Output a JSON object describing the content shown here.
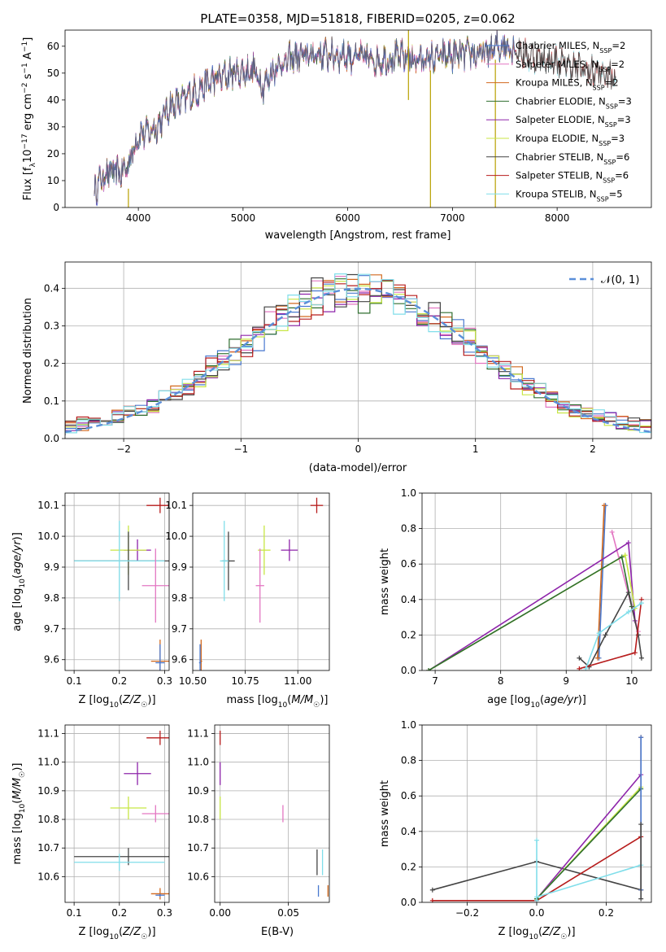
{
  "chart_data": [
    {
      "id": "spectrum",
      "type": "line",
      "title": "PLATE=0358, MJD=51818, FIBERID=0205, z=0.062",
      "xlabel": "wavelength [Angstrom, rest frame]",
      "ylabel": "Flux [f_λ10^-17 erg cm^-2 s^-1 A^-1]",
      "xlim": [
        3300,
        8900
      ],
      "ylim": [
        0,
        66
      ],
      "xticks": [
        4000,
        5000,
        6000,
        7000,
        8000
      ],
      "yticks": [
        0,
        10,
        20,
        30,
        40,
        50,
        60
      ],
      "grid": false,
      "legend_position": "upper-right",
      "series": [
        {
          "name": "Chabrier MILES, N_SSP=2",
          "color": "#4878cf"
        },
        {
          "name": "Salpeter MILES, N_SSP=2",
          "color": "#e377c2"
        },
        {
          "name": "Kroupa MILES, N_SSP=2",
          "color": "#d2691e"
        },
        {
          "name": "Chabrier ELODIE, N_SSP=3",
          "color": "#2f6e2f"
        },
        {
          "name": "Salpeter ELODIE, N_SSP=3",
          "color": "#8e24aa"
        },
        {
          "name": "Kroupa ELODIE, N_SSP=3",
          "color": "#c8e645"
        },
        {
          "name": "Chabrier STELIB, N_SSP=6",
          "color": "#444444"
        },
        {
          "name": "Salpeter STELIB, N_SSP=6",
          "color": "#b71c1c"
        },
        {
          "name": "Kroupa STELIB, N_SSP=5",
          "color": "#80deea"
        }
      ],
      "continuum": {
        "x": [
          3580,
          3700,
          3850,
          3900,
          4000,
          4100,
          4200,
          4300,
          4400,
          4500,
          4700,
          4900,
          5100,
          5200,
          5300,
          5500,
          5700,
          5900,
          6100,
          6300,
          6500,
          6700,
          6900,
          7100,
          7300,
          7500,
          7700,
          7900,
          8100,
          8300,
          8500
        ],
        "y": [
          7,
          13,
          13,
          16,
          27,
          28,
          31,
          38,
          39,
          42,
          47,
          50,
          51,
          45,
          52,
          56,
          57,
          57,
          56,
          55,
          56,
          55,
          56,
          57,
          57,
          61,
          57,
          55,
          53,
          51,
          49
        ]
      },
      "spikes": [
        {
          "x": 3905,
          "y": [
            0,
            7
          ]
        },
        {
          "x": 6580,
          "y": [
            40,
            66
          ]
        },
        {
          "x": 6790,
          "y": [
            0,
            51
          ]
        },
        {
          "x": 7410,
          "y": [
            0,
            55
          ]
        }
      ]
    },
    {
      "id": "residuals",
      "type": "step",
      "xlabel": "(data-model)/error",
      "ylabel": "Normed distribution",
      "xlim": [
        -2.5,
        2.5
      ],
      "ylim": [
        0,
        0.47
      ],
      "xticks": [
        -2,
        -1,
        0,
        1,
        2
      ],
      "yticks": [
        0.0,
        0.1,
        0.2,
        0.3,
        0.4
      ],
      "grid": true,
      "legend_position": "upper-right",
      "normal_curve": {
        "label": "𝒩(0, 1)",
        "mu": 0,
        "sigma": 1,
        "color": "#5b8fd9"
      },
      "bin_width": 0.1
    },
    {
      "id": "age-vs-Z",
      "type": "errorbar",
      "xlabel": "Z [log10(Z/Z☉)]",
      "ylabel": "age [log10(age/yr)]",
      "xlim": [
        0.08,
        0.31
      ],
      "ylim": [
        9.565,
        10.14
      ],
      "xticks": [
        0.1,
        0.2,
        0.3
      ],
      "yticks": [
        9.6,
        9.7,
        9.8,
        9.9,
        10.0,
        10.1
      ],
      "points": [
        {
          "color": "#b71c1c",
          "x": 0.29,
          "xerr": 0.03,
          "y": 10.1,
          "yerr": 0.025
        },
        {
          "color": "#8e24aa",
          "x": 0.24,
          "xerr": 0.03,
          "y": 9.955,
          "yerr": 0.035
        },
        {
          "color": "#c8e645",
          "x": 0.22,
          "xerr": 0.04,
          "y": 9.955,
          "yerr": 0.08
        },
        {
          "color": "#444444",
          "x": 0.22,
          "xerr": 0.12,
          "y": 9.92,
          "yerr": 0.095
        },
        {
          "color": "#80deea",
          "x": 0.2,
          "xerr": 0.1,
          "y": 9.92,
          "yerr": 0.13
        },
        {
          "color": "#e377c2",
          "x": 0.28,
          "xerr": 0.03,
          "y": 9.84,
          "yerr": 0.12
        },
        {
          "color": "#d2691e",
          "x": 0.29,
          "xerr": 0.02,
          "y": 9.595,
          "yerr": 0.07
        },
        {
          "color": "#4878cf",
          "x": 0.29,
          "xerr": 0.01,
          "y": 9.59,
          "yerr": 0.06
        }
      ]
    },
    {
      "id": "age-vs-mass",
      "type": "errorbar",
      "xlabel": "mass [log10(M/M☉)]",
      "xlim": [
        10.5,
        11.15
      ],
      "ylim": [
        9.565,
        10.14
      ],
      "xticks": [
        10.5,
        10.75,
        11.0
      ],
      "xticklabels": [
        "10.50",
        "10.75",
        "11.00"
      ],
      "yticks": [
        9.6,
        9.7,
        9.8,
        9.9,
        10.0,
        10.1
      ],
      "points": [
        {
          "color": "#b71c1c",
          "x": 11.09,
          "xerr": 0.03,
          "y": 10.1,
          "yerr": 0.025
        },
        {
          "color": "#8e24aa",
          "x": 10.96,
          "xerr": 0.04,
          "y": 9.955,
          "yerr": 0.035
        },
        {
          "color": "#c8e645",
          "x": 10.84,
          "xerr": 0.03,
          "y": 9.955,
          "yerr": 0.08
        },
        {
          "color": "#444444",
          "x": 10.67,
          "xerr": 0.03,
          "y": 9.92,
          "yerr": 0.095
        },
        {
          "color": "#80deea",
          "x": 10.65,
          "xerr": 0.02,
          "y": 9.92,
          "yerr": 0.13
        },
        {
          "color": "#e377c2",
          "x": 10.82,
          "xerr": 0.02,
          "y": 9.84,
          "yerr": 0.12
        },
        {
          "color": "#d2691e",
          "x": 10.54,
          "xerr": 0.005,
          "y": 9.595,
          "yerr": 0.07
        },
        {
          "color": "#4878cf",
          "x": 10.535,
          "xerr": 0.005,
          "y": 9.59,
          "yerr": 0.06
        }
      ]
    },
    {
      "id": "weight-vs-age",
      "type": "line",
      "xlabel": "age [log10(age/yr)]",
      "ylabel": "mass weight",
      "xlim": [
        6.8,
        10.3
      ],
      "ylim": [
        0,
        1
      ],
      "xticks": [
        7,
        8,
        9,
        10
      ],
      "yticks": [
        0.0,
        0.2,
        0.4,
        0.6,
        0.8,
        1.0
      ],
      "series": [
        {
          "color": "#4878cf",
          "x": [
            9.5,
            9.6
          ],
          "y": [
            0.07,
            0.93
          ]
        },
        {
          "color": "#e377c2",
          "x": [
            9.7,
            10.1
          ],
          "y": [
            0.78,
            0.22
          ]
        },
        {
          "color": "#d2691e",
          "x": [
            9.48,
            9.58
          ],
          "y": [
            0.07,
            0.93
          ]
        },
        {
          "color": "#8e24aa",
          "x": [
            6.9,
            9.95,
            10.05
          ],
          "y": [
            0.0,
            0.72,
            0.28
          ]
        },
        {
          "color": "#c8e645",
          "x": [
            6.9,
            9.9,
            10.05
          ],
          "y": [
            0.0,
            0.65,
            0.35
          ]
        },
        {
          "color": "#2f6e2f",
          "x": [
            6.9,
            9.85,
            10.0
          ],
          "y": [
            0.0,
            0.64,
            0.36
          ]
        },
        {
          "color": "#444444",
          "x": [
            9.2,
            9.35,
            9.6,
            9.95,
            10.1,
            10.15
          ],
          "y": [
            0.07,
            0.02,
            0.2,
            0.44,
            0.2,
            0.07
          ]
        },
        {
          "color": "#b71c1c",
          "x": [
            9.2,
            10.05,
            10.15
          ],
          "y": [
            0.01,
            0.1,
            0.4
          ]
        },
        {
          "color": "#80deea",
          "x": [
            9.3,
            9.5,
            9.95,
            10.15
          ],
          "y": [
            0.01,
            0.21,
            0.33,
            0.38
          ]
        }
      ]
    },
    {
      "id": "mass-vs-Z",
      "type": "errorbar",
      "xlabel": "Z [log10(Z/Z☉)]",
      "ylabel": "mass [log10(M/M☉)]",
      "xlim": [
        0.08,
        0.31
      ],
      "ylim": [
        10.51,
        11.13
      ],
      "xticks": [
        0.1,
        0.2,
        0.3
      ],
      "yticks": [
        10.6,
        10.7,
        10.8,
        10.9,
        11.0,
        11.1
      ],
      "points": [
        {
          "color": "#b71c1c",
          "x": 0.29,
          "xerr": 0.03,
          "y": 11.085,
          "yerr": 0.025
        },
        {
          "color": "#8e24aa",
          "x": 0.24,
          "xerr": 0.03,
          "y": 10.96,
          "yerr": 0.04
        },
        {
          "color": "#c8e645",
          "x": 0.22,
          "xerr": 0.04,
          "y": 10.84,
          "yerr": 0.04
        },
        {
          "color": "#444444",
          "x": 0.22,
          "xerr": 0.12,
          "y": 10.67,
          "yerr": 0.03
        },
        {
          "color": "#80deea",
          "x": 0.2,
          "xerr": 0.1,
          "y": 10.65,
          "yerr": 0.03
        },
        {
          "color": "#e377c2",
          "x": 0.28,
          "xerr": 0.03,
          "y": 10.82,
          "yerr": 0.03
        },
        {
          "color": "#d2691e",
          "x": 0.29,
          "xerr": 0.02,
          "y": 10.54,
          "yerr": 0.02
        },
        {
          "color": "#4878cf",
          "x": 0.29,
          "xerr": 0.01,
          "y": 10.535,
          "yerr": 0.005
        }
      ]
    },
    {
      "id": "mass-vs-EBV",
      "type": "errorbar",
      "xlabel": "E(B-V)",
      "xlim": [
        -0.004,
        0.08
      ],
      "ylim": [
        10.51,
        11.13
      ],
      "xticks": [
        0.0,
        0.05
      ],
      "xticklabels": [
        "0.00",
        "0.05"
      ],
      "yticks": [
        10.6,
        10.7,
        10.8,
        10.9,
        11.0,
        11.1
      ],
      "points": [
        {
          "color": "#b71c1c",
          "x": 0.0,
          "y": 11.085,
          "yerr": 0.025
        },
        {
          "color": "#8e24aa",
          "x": 0.0,
          "y": 10.96,
          "yerr": 0.04
        },
        {
          "color": "#c8e645",
          "x": 0.0,
          "y": 10.84,
          "yerr": 0.04
        },
        {
          "color": "#e377c2",
          "x": 0.046,
          "y": 10.82,
          "yerr": 0.03
        },
        {
          "color": "#444444",
          "x": 0.071,
          "y": 10.65,
          "yerr": 0.045
        },
        {
          "color": "#80deea",
          "x": 0.075,
          "y": 10.65,
          "yerr": 0.045
        },
        {
          "color": "#4878cf",
          "x": 0.072,
          "y": 10.55,
          "yerr": 0.02
        },
        {
          "color": "#d2691e",
          "x": 0.079,
          "y": 10.55,
          "yerr": 0.02
        }
      ]
    },
    {
      "id": "weight-vs-Z",
      "type": "line",
      "xlabel": "Z [log10(Z/Z☉)]",
      "ylabel": "mass weight",
      "xlim": [
        -0.33,
        0.33
      ],
      "ylim": [
        0,
        1
      ],
      "xticks": [
        -0.2,
        0.0,
        0.2
      ],
      "xticklabels": [
        "−0.2",
        "0.0",
        "0.2"
      ],
      "yticks": [
        0.0,
        0.2,
        0.4,
        0.6,
        0.8,
        1.0
      ],
      "series": [
        {
          "color": "#444444",
          "x": [
            -0.3,
            0.0,
            0.3
          ],
          "y": [
            0.07,
            0.23,
            0.07
          ]
        },
        {
          "color": "#b71c1c",
          "x": [
            -0.3,
            0.0,
            0.3
          ],
          "y": [
            0.01,
            0.01,
            0.37
          ]
        },
        {
          "color": "#8e24aa",
          "x": [
            0.0,
            0.3
          ],
          "y": [
            0.02,
            0.72
          ]
        },
        {
          "color": "#c8e645",
          "x": [
            0.0,
            0.3
          ],
          "y": [
            0.02,
            0.65
          ]
        },
        {
          "color": "#2f6e2f",
          "x": [
            0.0,
            0.3
          ],
          "y": [
            0.02,
            0.64
          ]
        },
        {
          "color": "#80deea",
          "x": [
            0.0,
            0.3
          ],
          "y": [
            0.03,
            0.21
          ]
        },
        {
          "color": "#d2691e",
          "x": [
            0.3,
            0.3
          ],
          "y": [
            0.07,
            0.93
          ]
        },
        {
          "color": "#4878cf",
          "x": [
            0.3,
            0.3
          ],
          "y": [
            0.07,
            0.93
          ]
        },
        {
          "color": "#80deea",
          "x": [
            0.0,
            0.0
          ],
          "y": [
            0.01,
            0.35
          ]
        },
        {
          "color": "#444444",
          "x": [
            0.3,
            0.3
          ],
          "y": [
            0.02,
            0.44
          ]
        }
      ]
    }
  ]
}
